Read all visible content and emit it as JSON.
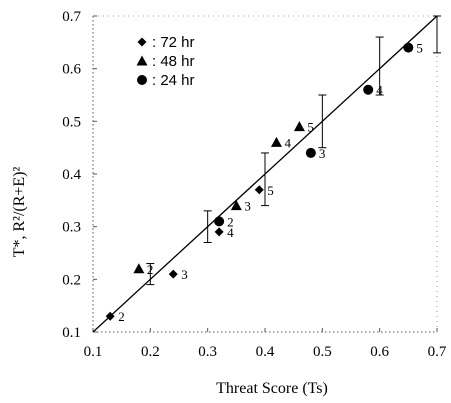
{
  "chart_data": {
    "type": "scatter",
    "title": "",
    "xlabel": "Threat Score (Ts)",
    "ylabel": "T*, R²/(R+E)²",
    "xlim": [
      0.1,
      0.7
    ],
    "ylim": [
      0.1,
      0.7
    ],
    "x_ticks": [
      "0.1",
      "0.2",
      "0.3",
      "0.4",
      "0.5",
      "0.6",
      "0.7"
    ],
    "y_ticks": [
      "0.1",
      "0.2",
      "0.3",
      "0.4",
      "0.5",
      "0.6",
      "0.7"
    ],
    "legend_position": "top-left",
    "grid": false,
    "series": [
      {
        "name": ": 72 hr",
        "marker": "diamond",
        "points": [
          {
            "x": 0.13,
            "y": 0.13,
            "label": "2"
          },
          {
            "x": 0.24,
            "y": 0.21,
            "label": "3"
          },
          {
            "x": 0.32,
            "y": 0.29,
            "label": "4"
          },
          {
            "x": 0.39,
            "y": 0.37,
            "label": "5"
          }
        ]
      },
      {
        "name": ": 48 hr",
        "marker": "triangle",
        "points": [
          {
            "x": 0.18,
            "y": 0.22,
            "label": "2"
          },
          {
            "x": 0.35,
            "y": 0.34,
            "label": "3"
          },
          {
            "x": 0.42,
            "y": 0.46,
            "label": "4"
          },
          {
            "x": 0.46,
            "y": 0.49,
            "label": "5"
          }
        ]
      },
      {
        "name": ": 24 hr",
        "marker": "circle",
        "points": [
          {
            "x": 0.32,
            "y": 0.31,
            "label": "2"
          },
          {
            "x": 0.48,
            "y": 0.44,
            "label": "3"
          },
          {
            "x": 0.58,
            "y": 0.56,
            "label": "4"
          },
          {
            "x": 0.65,
            "y": 0.64,
            "label": "5"
          }
        ]
      }
    ],
    "fit_line": {
      "x": [
        0.1,
        0.7
      ],
      "y": [
        0.1,
        0.7
      ]
    },
    "error_bars": [
      {
        "x": 0.2,
        "low": 0.19,
        "high": 0.23
      },
      {
        "x": 0.3,
        "low": 0.27,
        "high": 0.33
      },
      {
        "x": 0.4,
        "low": 0.34,
        "high": 0.44
      },
      {
        "x": 0.5,
        "low": 0.45,
        "high": 0.55
      },
      {
        "x": 0.6,
        "low": 0.55,
        "high": 0.66
      },
      {
        "x": 0.7,
        "low": 0.63,
        "high": 0.7
      }
    ],
    "colors": {
      "marker": "#000000",
      "line": "#000000",
      "axis": "#555555"
    }
  }
}
